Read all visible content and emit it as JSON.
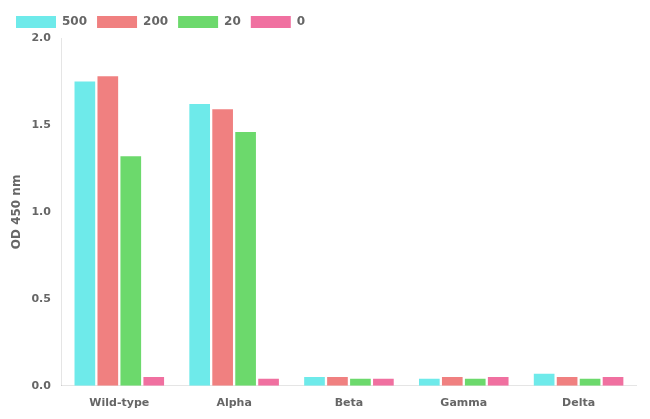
{
  "chart_data": {
    "type": "bar",
    "categories": [
      "Wild-type",
      "Alpha",
      "Beta",
      "Gamma",
      "Delta"
    ],
    "series": [
      {
        "name": "500",
        "color": "#6EEAEA",
        "values": [
          1.75,
          1.62,
          0.05,
          0.04,
          0.07
        ]
      },
      {
        "name": "200",
        "color": "#F08080",
        "values": [
          1.78,
          1.59,
          0.05,
          0.05,
          0.05
        ]
      },
      {
        "name": "20",
        "color": "#6CD96C",
        "values": [
          1.32,
          1.46,
          0.04,
          0.04,
          0.04
        ]
      },
      {
        "name": "0",
        "color": "#F070A0",
        "values": [
          0.05,
          0.04,
          0.04,
          0.05,
          0.05
        ]
      }
    ],
    "ylabel": "OD 450 nm",
    "ylim": [
      0,
      2.0
    ],
    "yticks": [
      {
        "value": 0,
        "label": "0.0"
      },
      0.5,
      {
        "value": 1,
        "label": "1.0"
      },
      1.5,
      {
        "value": 2,
        "label": "2.0"
      }
    ],
    "grid": false,
    "legend": "upper left"
  }
}
